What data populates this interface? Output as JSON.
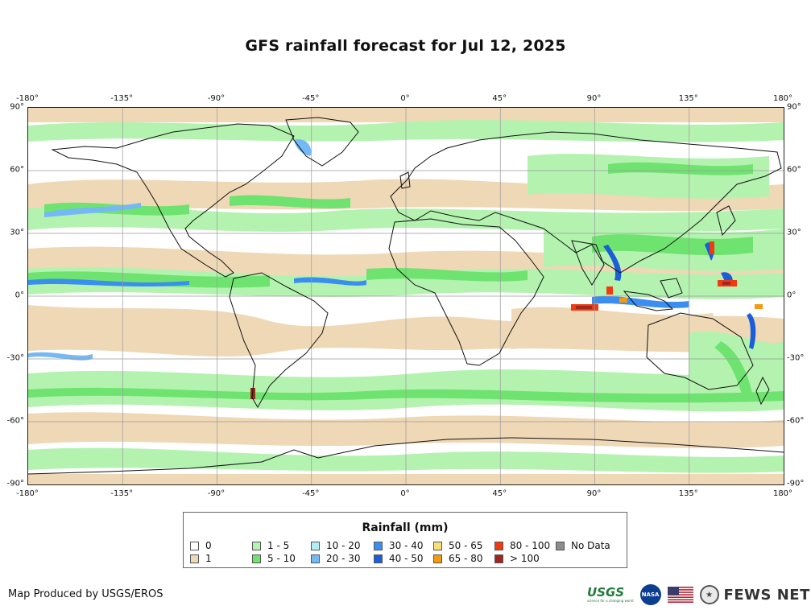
{
  "title": "GFS rainfall forecast for Jul 12, 2025",
  "lon_ticks": [
    "-180°",
    "-135°",
    "-90°",
    "-45°",
    "0°",
    "45°",
    "90°",
    "135°",
    "180°"
  ],
  "lat_ticks": [
    "90°",
    "60°",
    "30°",
    "0°",
    "-30°",
    "-60°",
    "-90°"
  ],
  "legend": {
    "title": "Rainfall (mm)",
    "items": [
      {
        "label": "0",
        "color": "#ffffff"
      },
      {
        "label": "1",
        "color": "#efd8b6"
      },
      {
        "label": "1 - 5",
        "color": "#b4f2b0"
      },
      {
        "label": "5 - 10",
        "color": "#6fe36f"
      },
      {
        "label": "10 - 20",
        "color": "#b0eef2"
      },
      {
        "label": "20 - 30",
        "color": "#74b8f4"
      },
      {
        "label": "30 - 40",
        "color": "#3a8ef0"
      },
      {
        "label": "40 - 50",
        "color": "#1a5ed8"
      },
      {
        "label": "50 - 65",
        "color": "#f7e07a"
      },
      {
        "label": "65 - 80",
        "color": "#f29a12"
      },
      {
        "label": "80 - 100",
        "color": "#f23a10"
      },
      {
        "label": "> 100",
        "color": "#a1261c"
      },
      {
        "label": "No Data",
        "color": "#8c8c8c"
      }
    ]
  },
  "credit": "Map Produced by USGS/EROS",
  "logos": {
    "usgs": "USGS",
    "usgs_tagline": "science for a changing world",
    "nasa": "NASA",
    "fews": "FEWS NET",
    "flag_icon": "us-flag-icon",
    "seal_icon": "state-department-seal-icon"
  },
  "colors": {
    "land_outline": "#111111",
    "grid": "#9a9a9a",
    "rain_light": "#b4f2b0",
    "rain_moderate": "#6fe36f",
    "rain_trace": "#efd8b6"
  }
}
